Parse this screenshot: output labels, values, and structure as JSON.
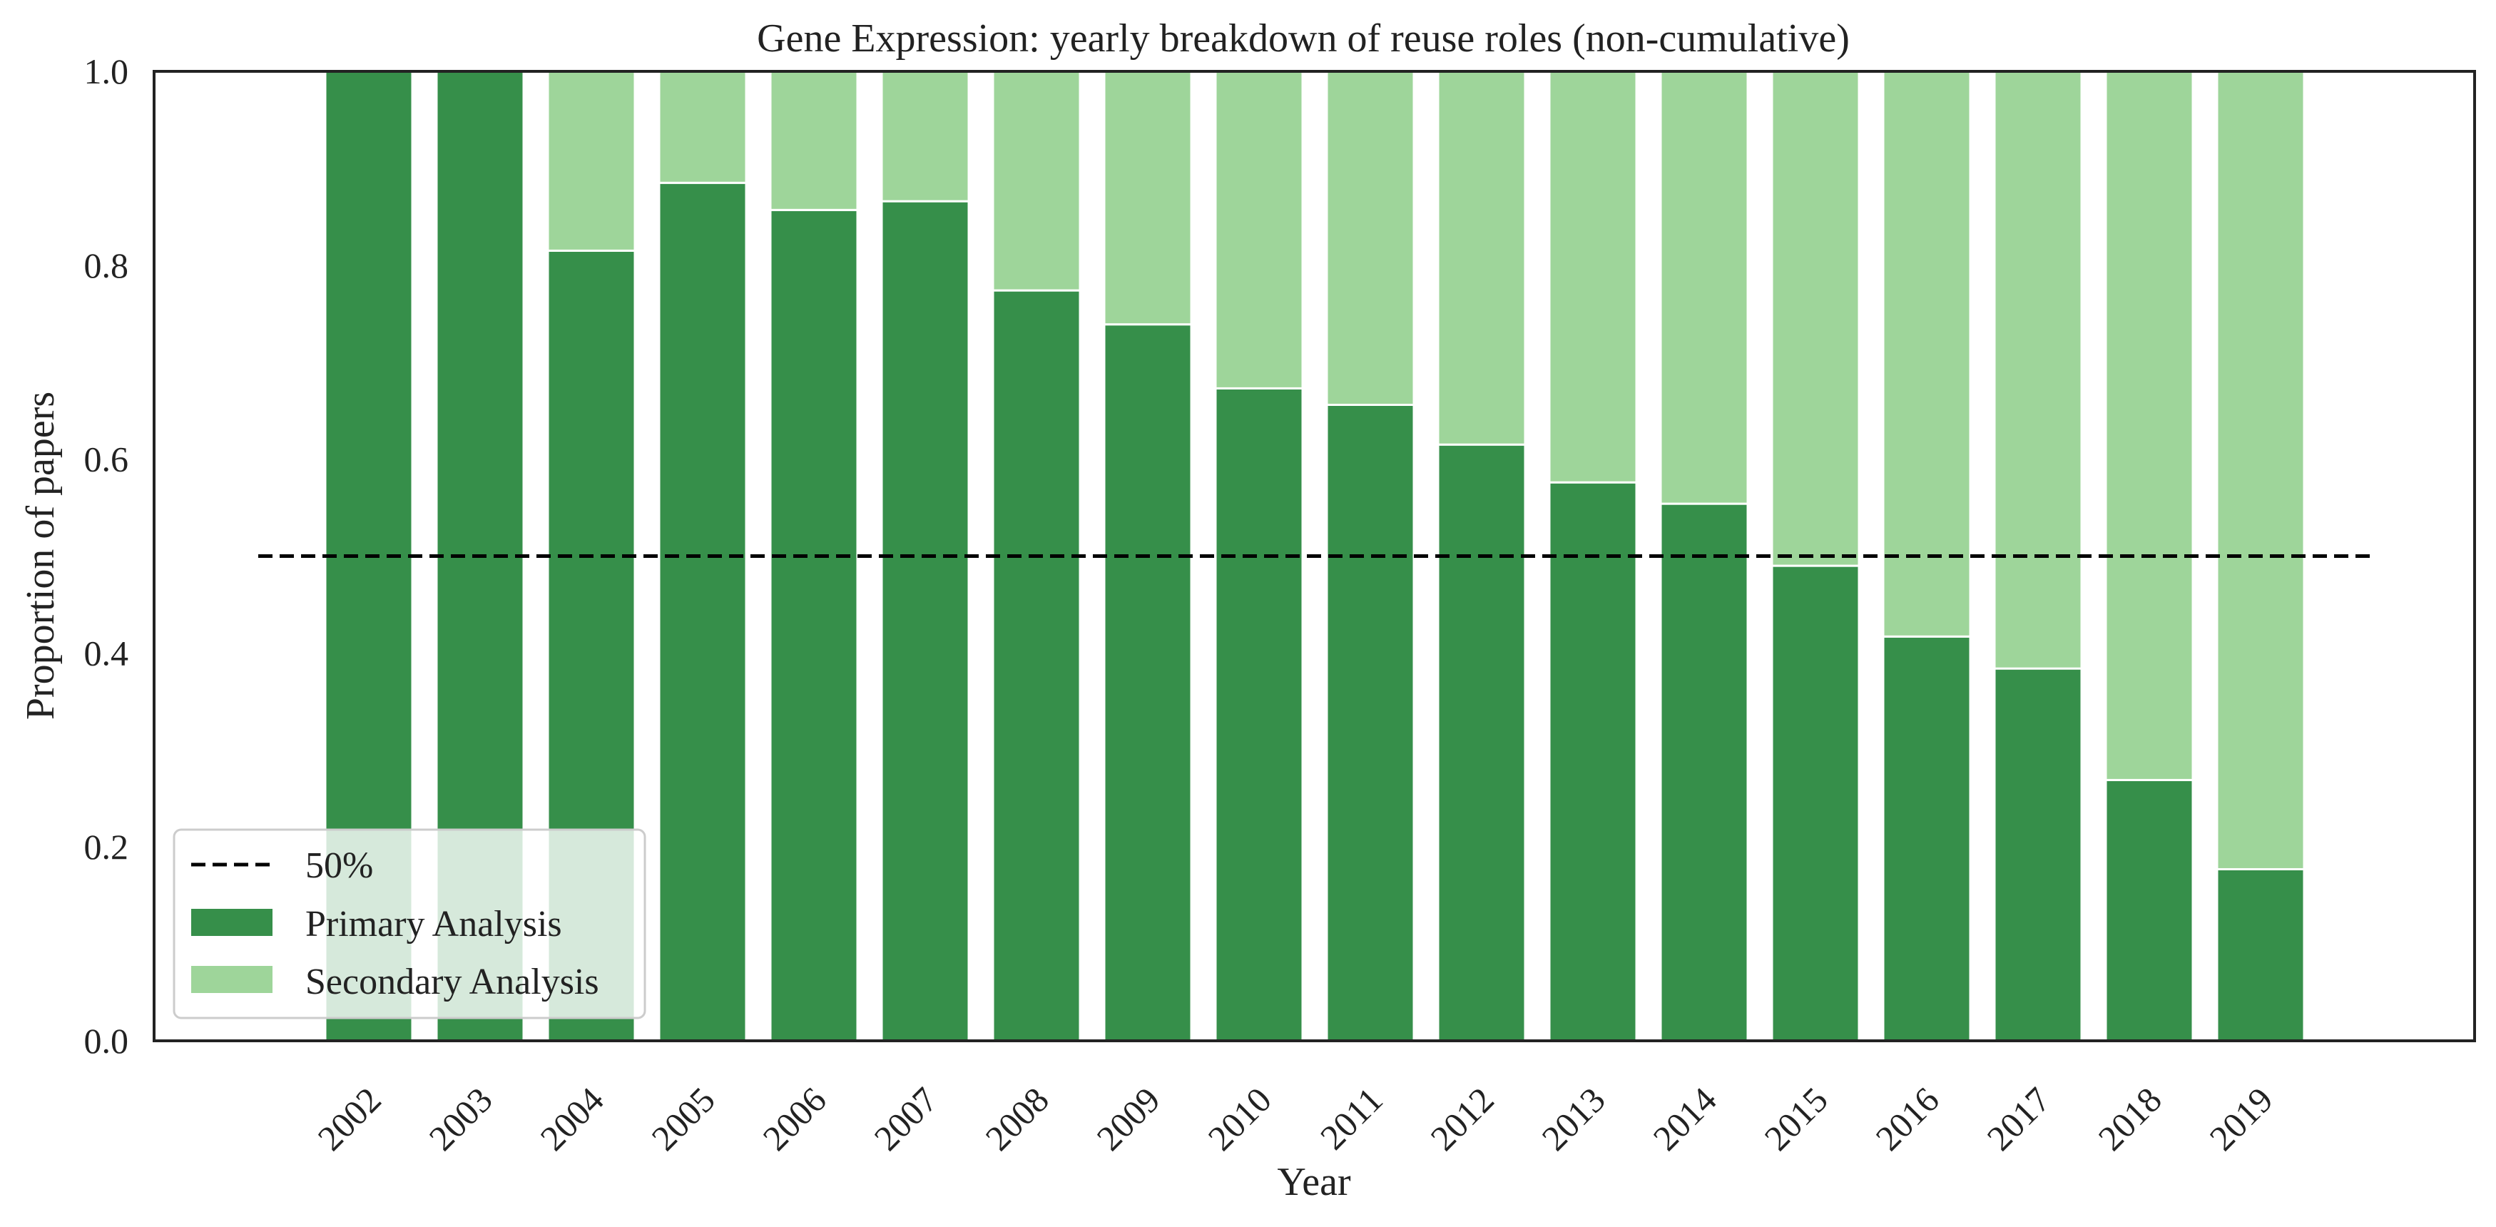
{
  "chart_data": {
    "type": "bar",
    "stacked": true,
    "title": "Gene Expression: yearly breakdown of reuse roles (non-cumulative)",
    "xlabel": "Year",
    "ylabel": "Proportion of papers",
    "categories": [
      "2002",
      "2003",
      "2004",
      "2005",
      "2006",
      "2007",
      "2008",
      "2009",
      "2010",
      "2011",
      "2012",
      "2013",
      "2014",
      "2015",
      "2016",
      "2017",
      "2018",
      "2019"
    ],
    "series": [
      {
        "name": "Primary Analysis",
        "color": "#368f4a",
        "values": [
          1.0,
          1.0,
          0.815,
          0.885,
          0.857,
          0.866,
          0.774,
          0.739,
          0.673,
          0.656,
          0.615,
          0.576,
          0.554,
          0.49,
          0.417,
          0.384,
          0.269,
          0.177
        ]
      },
      {
        "name": "Secondary Analysis",
        "color": "#9ed59a",
        "values": [
          0.0,
          0.0,
          0.185,
          0.115,
          0.143,
          0.134,
          0.226,
          0.261,
          0.327,
          0.344,
          0.385,
          0.424,
          0.446,
          0.51,
          0.583,
          0.616,
          0.731,
          0.823
        ]
      }
    ],
    "reference_line": {
      "name": "50%",
      "value": 0.5,
      "style": "dashed",
      "color": "#000000"
    },
    "ylim": [
      0,
      1.0
    ],
    "yticks": [
      "0.0",
      "0.2",
      "0.4",
      "0.6",
      "0.8",
      "1.0"
    ],
    "ytick_values": [
      0,
      0.2,
      0.4,
      0.6,
      0.8,
      1.0
    ],
    "grid": false,
    "legend": {
      "position": "lower-left",
      "entries": [
        "50%",
        "Primary Analysis",
        "Secondary Analysis"
      ]
    }
  }
}
